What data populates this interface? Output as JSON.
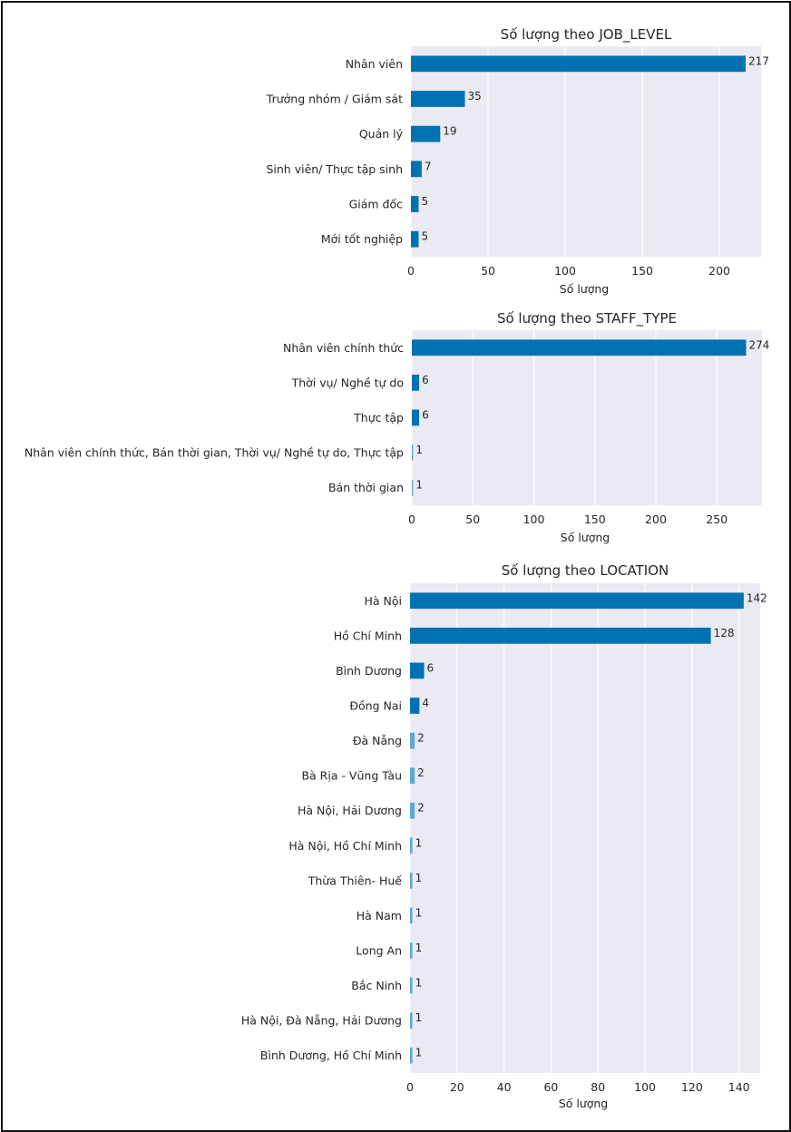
{
  "colors": {
    "bar": "#0072b2",
    "bar_small": "#5fa8d3",
    "plot_bg": "#eaeaf2",
    "grid": "#ffffff",
    "text": "#262626"
  },
  "chart_data": [
    {
      "type": "bar",
      "orientation": "horizontal",
      "title": "Số lượng theo JOB_LEVEL",
      "xlabel": "Số lượng",
      "ylabel": "",
      "categories": [
        "Nhân viên",
        "Trưởng nhóm / Giám sát",
        "Quản lý",
        "Sinh viên/ Thực tập sinh",
        "Giám đốc",
        "Mới tốt nghiệp"
      ],
      "values": [
        217,
        35,
        19,
        7,
        5,
        5
      ],
      "xlim": [
        0,
        227
      ],
      "xticks": [
        0,
        50,
        100,
        150,
        200
      ],
      "grid": true
    },
    {
      "type": "bar",
      "orientation": "horizontal",
      "title": "Số lượng theo STAFF_TYPE",
      "xlabel": "Số lượng",
      "ylabel": "",
      "categories": [
        "Nhân viên chính thức",
        "Thời vụ/ Nghề tự do",
        "Thực tập",
        "Nhân viên chính thức, Bán thời gian, Thời vụ/ Nghề tự do, Thực tập",
        "Bán thời gian"
      ],
      "values": [
        274,
        6,
        6,
        1,
        1
      ],
      "xlim": [
        0,
        287
      ],
      "xticks": [
        0,
        50,
        100,
        150,
        200,
        250
      ],
      "grid": true
    },
    {
      "type": "bar",
      "orientation": "horizontal",
      "title": "Số lượng theo LOCATION",
      "xlabel": "Số lượng",
      "ylabel": "",
      "categories": [
        "Hà Nội",
        "Hồ Chí Minh",
        "Bình Dương",
        "Đồng Nai",
        "Đà Nẵng",
        "Bà Rịa - Vũng Tàu",
        "Hà Nội, Hải Dương",
        "Hà Nội, Hồ Chí Minh",
        "Thừa Thiên- Huế",
        "Hà Nam",
        "Long An",
        "Bắc Ninh",
        "Hà Nội, Đà Nẵng, Hải Dương",
        "Bình Dương, Hồ Chí Minh"
      ],
      "values": [
        142,
        128,
        6,
        4,
        2,
        2,
        2,
        1,
        1,
        1,
        1,
        1,
        1,
        1
      ],
      "xlim": [
        0,
        149
      ],
      "xticks": [
        0,
        20,
        40,
        60,
        80,
        100,
        120,
        140
      ],
      "grid": true
    }
  ]
}
